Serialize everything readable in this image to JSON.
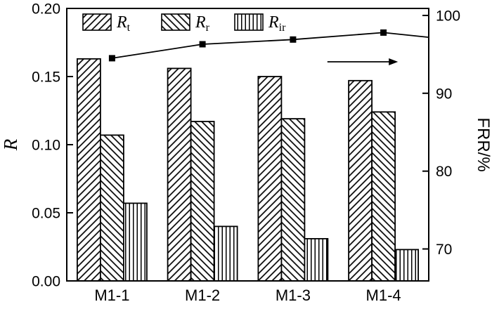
{
  "figure": {
    "background": "#ffffff",
    "foreground": "#000000"
  },
  "chart_data": {
    "type": "bar",
    "title": "",
    "categories": [
      "M1-1",
      "M1-2",
      "M1-3",
      "M1-4"
    ],
    "bar_series": [
      {
        "name": "Rt",
        "label_main": "R",
        "label_sub": "t",
        "hatch": "diagonal-up",
        "values": [
          0.163,
          0.156,
          0.15,
          0.147
        ]
      },
      {
        "name": "Rr",
        "label_main": "R",
        "label_sub": "r",
        "hatch": "diagonal-down",
        "values": [
          0.107,
          0.117,
          0.119,
          0.124
        ]
      },
      {
        "name": "Rir",
        "label_main": "R",
        "label_sub": "ir",
        "hatch": "vertical",
        "values": [
          0.057,
          0.04,
          0.031,
          0.023
        ]
      }
    ],
    "line_series": {
      "name": "FRR",
      "axis": "right",
      "marker": "square",
      "values": [
        94.5,
        96.3,
        96.9,
        97.8
      ],
      "tail_value": 97.2
    },
    "left_axis": {
      "label": "R",
      "min": 0.0,
      "max": 0.2,
      "ticks": [
        0.0,
        0.05,
        0.1,
        0.15,
        0.2
      ],
      "tick_labels": [
        "0.00",
        "0.05",
        "0.10",
        "0.15",
        "0.20"
      ]
    },
    "right_axis": {
      "label": "FRR/%",
      "min": 65.9,
      "max": 100.9,
      "ticks": [
        70,
        80,
        90,
        100
      ],
      "tick_labels": [
        "70",
        "80",
        "90",
        "100"
      ]
    },
    "legend": {
      "position": "top-left-inside"
    },
    "grid": "off",
    "annotations": [
      {
        "type": "arrow-right",
        "meaning": "line refers to right axis",
        "x_start_frac": 0.72,
        "x_end_frac": 0.915,
        "y_frac": 0.196
      }
    ]
  }
}
